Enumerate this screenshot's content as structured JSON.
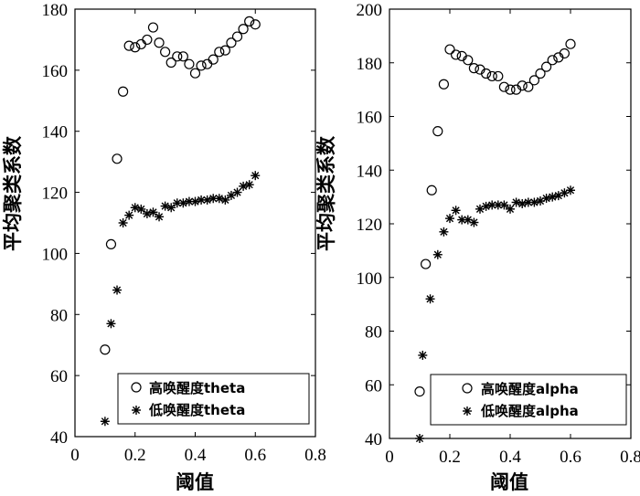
{
  "chart_data": [
    {
      "type": "scatter",
      "title": "",
      "xlabel": "阈值",
      "ylabel": "平均聚类系数",
      "xlim": [
        0,
        0.8
      ],
      "ylim": [
        40,
        180
      ],
      "xticks": [
        "0",
        "0.2",
        "0.4",
        "0.6",
        "0.8"
      ],
      "yticks": [
        "40",
        "60",
        "80",
        "100",
        "120",
        "140",
        "160",
        "180"
      ],
      "grid": false,
      "legend_position": "bottom-right",
      "series": [
        {
          "name": "高唤醒度theta",
          "marker": "circle",
          "x": [
            0.1,
            0.12,
            0.14,
            0.16,
            0.18,
            0.2,
            0.22,
            0.24,
            0.26,
            0.28,
            0.3,
            0.32,
            0.34,
            0.36,
            0.38,
            0.4,
            0.42,
            0.44,
            0.46,
            0.48,
            0.5,
            0.52,
            0.54,
            0.56,
            0.58,
            0.6
          ],
          "y": [
            68.5,
            103,
            131,
            153,
            168,
            167.5,
            168.5,
            170,
            174,
            169,
            166,
            162.5,
            164.5,
            164.5,
            162,
            159,
            161.5,
            162,
            163.5,
            166,
            166.5,
            169,
            171,
            173.5,
            176,
            175
          ]
        },
        {
          "name": "低唤醒度theta",
          "marker": "star",
          "x": [
            0.1,
            0.12,
            0.14,
            0.16,
            0.18,
            0.2,
            0.22,
            0.24,
            0.26,
            0.28,
            0.3,
            0.32,
            0.34,
            0.36,
            0.38,
            0.4,
            0.42,
            0.44,
            0.46,
            0.48,
            0.5,
            0.52,
            0.54,
            0.56,
            0.58,
            0.6
          ],
          "y": [
            45,
            77,
            88,
            110,
            112.5,
            115,
            114.5,
            113,
            113.5,
            112,
            115.5,
            115,
            116.5,
            116.5,
            117,
            117,
            117.5,
            117.5,
            118,
            118,
            117.5,
            119,
            120,
            122,
            122.5,
            125.5
          ]
        }
      ]
    },
    {
      "type": "scatter",
      "title": "",
      "xlabel": "阈值",
      "ylabel": "平均聚类系数",
      "xlim": [
        0,
        0.8
      ],
      "ylim": [
        40,
        200
      ],
      "xticks": [
        "0",
        "0.2",
        "0.4",
        "0.6",
        "0.8"
      ],
      "yticks": [
        "40",
        "60",
        "80",
        "100",
        "120",
        "140",
        "160",
        "180",
        "200"
      ],
      "grid": false,
      "legend_position": "bottom-right",
      "series": [
        {
          "name": "高唤醒度alpha",
          "marker": "circle",
          "x": [
            0.1,
            0.12,
            0.14,
            0.16,
            0.18,
            0.2,
            0.22,
            0.24,
            0.26,
            0.28,
            0.3,
            0.32,
            0.34,
            0.36,
            0.38,
            0.4,
            0.42,
            0.44,
            0.46,
            0.48,
            0.5,
            0.52,
            0.54,
            0.56,
            0.58,
            0.6
          ],
          "y": [
            57.5,
            105,
            132.5,
            154.5,
            172,
            185,
            183,
            182.5,
            181,
            178,
            177.5,
            176,
            175,
            175,
            171,
            170,
            170,
            171.5,
            171,
            173.5,
            176,
            178.5,
            181,
            182,
            183.5,
            187
          ]
        },
        {
          "name": "低唤醒度alpha",
          "marker": "star",
          "x": [
            0.1,
            0.11,
            0.135,
            0.16,
            0.18,
            0.2,
            0.22,
            0.24,
            0.26,
            0.28,
            0.3,
            0.32,
            0.34,
            0.36,
            0.38,
            0.4,
            0.42,
            0.44,
            0.46,
            0.48,
            0.5,
            0.52,
            0.54,
            0.56,
            0.58,
            0.6
          ],
          "y": [
            40,
            71,
            92,
            108.5,
            117,
            122,
            125,
            121.5,
            121.5,
            120.5,
            125.5,
            126.5,
            127,
            127,
            127,
            125.5,
            128,
            127.5,
            128,
            128,
            128.5,
            129.5,
            130,
            130.5,
            131.5,
            132.5
          ]
        }
      ]
    }
  ]
}
